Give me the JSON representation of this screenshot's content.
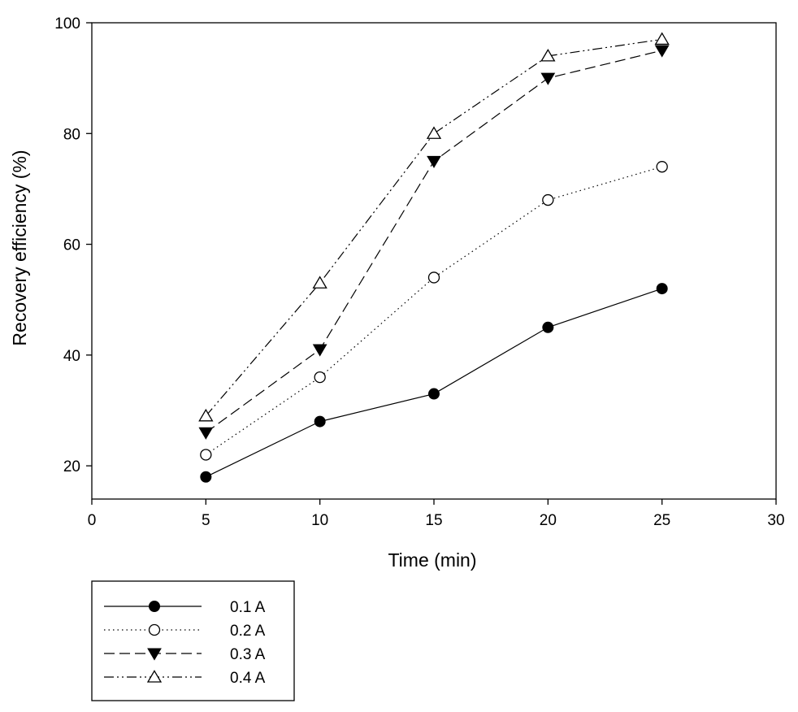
{
  "chart_data": {
    "type": "line",
    "title": "",
    "xlabel": "Time (min)",
    "ylabel": "Recovery efficiency (%)",
    "xlim": [
      0,
      30
    ],
    "ylim": [
      14,
      100
    ],
    "xticks": [
      0,
      5,
      10,
      15,
      20,
      25,
      30
    ],
    "yticks": [
      20,
      40,
      60,
      80,
      100
    ],
    "xtick_labels": [
      "0",
      "5",
      "10",
      "15",
      "20",
      "25",
      "30"
    ],
    "ytick_labels": [
      "20",
      "40",
      "60",
      "80",
      "100"
    ],
    "grid": false,
    "legend_position": "bottom-left, outside plot area",
    "x": [
      5,
      10,
      15,
      20,
      25
    ],
    "series": [
      {
        "name": "0.1 A",
        "values": [
          18,
          28,
          33,
          45,
          52
        ],
        "marker": "filled-circle",
        "line_style": "solid"
      },
      {
        "name": "0.2 A",
        "values": [
          22,
          36,
          54,
          68,
          74
        ],
        "marker": "open-circle",
        "line_style": "dotted"
      },
      {
        "name": "0.3 A",
        "values": [
          26,
          41,
          75,
          90,
          95
        ],
        "marker": "filled-triangle-down",
        "line_style": "dashed"
      },
      {
        "name": "0.4 A",
        "values": [
          29,
          53,
          80,
          94,
          97
        ],
        "marker": "open-triangle-up",
        "line_style": "dash-dot-dot"
      }
    ]
  },
  "colors": {
    "line": "#000000",
    "background": "#ffffff"
  }
}
